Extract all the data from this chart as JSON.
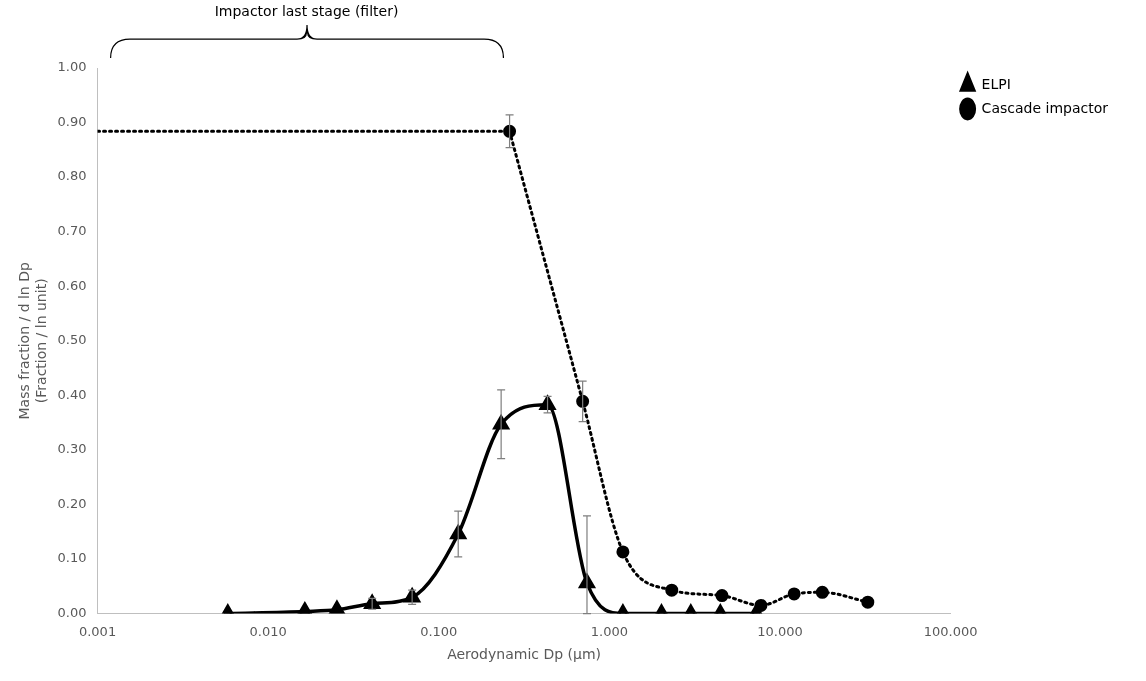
{
  "chart_data": {
    "type": "line",
    "xlabel": "Aerodynamic Dp (µm)",
    "ylabel": "Mass fraction / d ln Dp\n(Fraction / ln unit)",
    "log": "x",
    "xlim": [
      0.001,
      100
    ],
    "xticks": [
      {
        "value": 0.001,
        "label": "0.001"
      },
      {
        "value": 0.01,
        "label": "0.010"
      },
      {
        "value": 0.1,
        "label": "0.100"
      },
      {
        "value": 1,
        "label": "1.000"
      },
      {
        "value": 10,
        "label": "10.000"
      },
      {
        "value": 100,
        "label": "100.000"
      }
    ],
    "ylim": [
      0,
      1
    ],
    "yticks": [
      {
        "value": 0,
        "label": "0.00"
      },
      {
        "value": 0.1,
        "label": "0.10"
      },
      {
        "value": 0.2,
        "label": "0.20"
      },
      {
        "value": 0.3,
        "label": "0.30"
      },
      {
        "value": 0.4,
        "label": "0.40"
      },
      {
        "value": 0.5,
        "label": "0.50"
      },
      {
        "value": 0.6,
        "label": "0.60"
      },
      {
        "value": 0.7,
        "label": "0.70"
      },
      {
        "value": 0.8,
        "label": "0.80"
      },
      {
        "value": 0.9,
        "label": "0.90"
      },
      {
        "value": 1,
        "label": "1.00"
      }
    ],
    "grid": false,
    "legend": "top right",
    "annotations": [
      "Impactor last stage (filter)"
    ],
    "series": [
      {
        "name": "ELPI",
        "color": "#000000",
        "marker": "triangle",
        "line_style": "solid",
        "x": [
          0.0058,
          0.0164,
          0.0253,
          0.0407,
          0.0698,
          0.13,
          0.232,
          0.434,
          0.739,
          1.2,
          2.02,
          3.0,
          4.47,
          7.25
        ],
        "values": [
          0,
          0.004,
          0.007,
          0.018,
          0.03,
          0.146,
          0.347,
          0.383,
          0.056,
          0,
          0,
          0,
          0,
          0
        ],
        "errors": [
          null,
          null,
          null,
          0.01,
          0.013,
          0.042,
          0.063,
          0.015,
          [
            0,
            0.179
          ],
          null,
          null,
          null,
          null,
          null
        ]
      },
      {
        "name": "Cascade impactor",
        "color": "#000000",
        "marker": "circle",
        "line_style": "dotted",
        "x": [
          0.26,
          0.697,
          1.2,
          2.32,
          4.57,
          7.73,
          12.1,
          17.7,
          32.7
        ],
        "values": [
          0.884,
          0.389,
          0.113,
          0.043,
          0.033,
          0.015,
          0.036,
          0.039,
          0.021
        ],
        "errors": [
          0.03,
          0.037,
          null,
          null,
          null,
          null,
          null,
          null,
          null
        ]
      },
      {
        "color": "#000000",
        "marker": "none",
        "line_style": "dotted",
        "x": [
          0.001,
          0.26
        ],
        "values": [
          0.884,
          0.884
        ]
      }
    ]
  }
}
